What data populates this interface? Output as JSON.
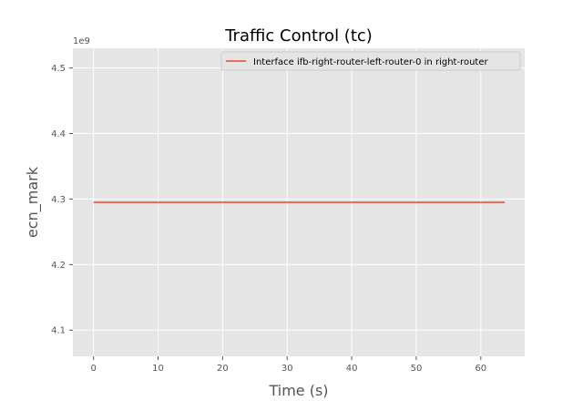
{
  "chart_data": {
    "type": "line",
    "title": "Traffic Control (tc)",
    "xlabel": "Time (s)",
    "ylabel": "ecn_mark",
    "y_offset_label": "1e9",
    "xlim": [
      -3.2,
      66.8
    ],
    "ylim": [
      4.06,
      4.53
    ],
    "xticks": [
      0,
      10,
      20,
      30,
      40,
      50,
      60
    ],
    "yticks": [
      4.1,
      4.2,
      4.3,
      4.4,
      4.5
    ],
    "ytick_labels": [
      "4.1",
      "4.2",
      "4.3",
      "4.4",
      "4.5"
    ],
    "grid": true,
    "legend_position": "top-right",
    "series": [
      {
        "name": "Interface ifb-right-router-left-router-0 in right-router",
        "color": "#E24A33",
        "x": [
          0,
          63.7
        ],
        "y": [
          4.295,
          4.295
        ]
      }
    ]
  }
}
